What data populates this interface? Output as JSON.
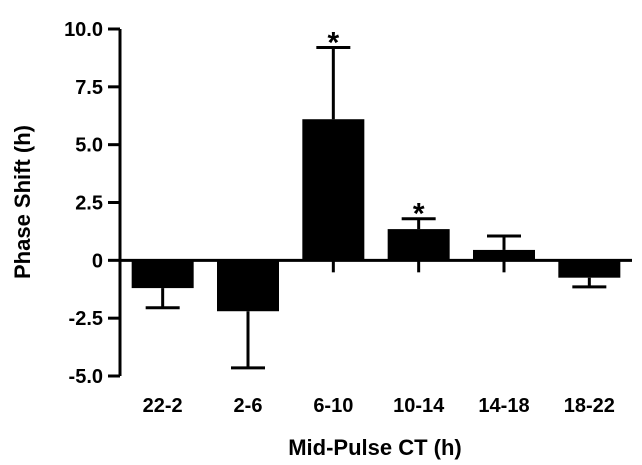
{
  "chart_data": {
    "type": "bar",
    "title": "",
    "xlabel": "Mid-Pulse CT (h)",
    "ylabel": "Phase Shift (h)",
    "categories": [
      "22-2",
      "2-6",
      "6-10",
      "10-14",
      "14-18",
      "18-22"
    ],
    "values": [
      -1.2,
      -2.2,
      6.1,
      1.35,
      0.45,
      -0.75
    ],
    "errors": [
      0.85,
      2.45,
      3.1,
      0.45,
      0.6,
      0.4
    ],
    "significance": [
      "",
      "",
      "*",
      "*",
      "",
      ""
    ],
    "yticks": [
      10.0,
      7.5,
      5.0,
      2.5,
      0,
      -2.5,
      -5.0
    ],
    "ytick_labels": [
      "10.0",
      "7.5",
      "5.0",
      "2.5",
      "0",
      "-2.5",
      "-5.0"
    ],
    "ylim": [
      -5.0,
      10.0
    ],
    "grid": false,
    "bar_color": "#000000"
  }
}
